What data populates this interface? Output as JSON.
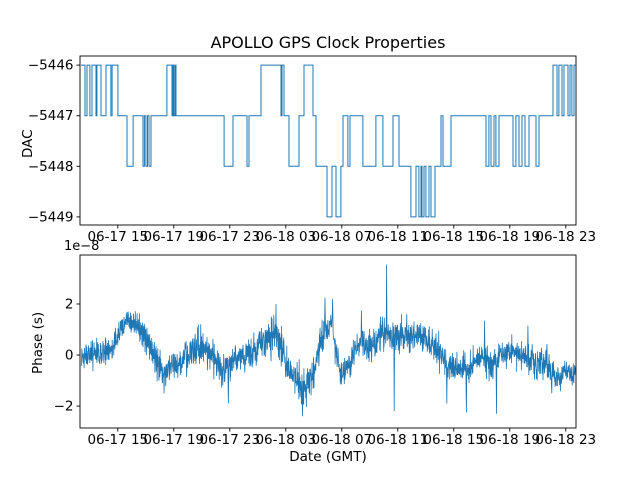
{
  "figure": {
    "title": "APOLLO GPS Clock Properties",
    "background_color": "#ffffff",
    "line_color": "#1f77b4",
    "axis_color": "#000000",
    "text_color": "#000000"
  },
  "chart_data": [
    {
      "type": "line",
      "name": "dac",
      "title": "APOLLO GPS Clock Properties",
      "ylabel": "DAC",
      "drawstyle": "steps-post",
      "line_color": "#1f77b4",
      "x_axis_note": "x values are hours; tick labels show month-day hour (GMT)",
      "xlim": [
        0.3,
        35.73
      ],
      "x_end": 35.7,
      "ylim": [
        -5449.16,
        -5445.82
      ],
      "xticks": [
        3,
        7,
        11,
        15,
        19,
        23,
        27,
        31,
        35
      ],
      "xtick_labels": [
        "06-17 15",
        "06-17 19",
        "06-17 23",
        "06-18 03",
        "06-18 07",
        "06-18 11",
        "06-18 15",
        "06-18 19",
        "06-18 23"
      ],
      "yticks": [
        -5446,
        -5447,
        -5448,
        -5449
      ],
      "ytick_labels": [
        "−5446",
        "−5447",
        "−5448",
        "−5449"
      ],
      "steps": [
        [
          0.37,
          -5446
        ],
        [
          0.66,
          -5447
        ],
        [
          0.8,
          -5446
        ],
        [
          1.01,
          -5447
        ],
        [
          1.16,
          -5446
        ],
        [
          1.44,
          -5447
        ],
        [
          1.51,
          -5446
        ],
        [
          1.8,
          -5447
        ],
        [
          2.16,
          -5446
        ],
        [
          2.51,
          -5447
        ],
        [
          2.59,
          -5446
        ],
        [
          3.01,
          -5447
        ],
        [
          3.66,
          -5448
        ],
        [
          4.09,
          -5447
        ],
        [
          4.8,
          -5448
        ],
        [
          4.9,
          -5447
        ],
        [
          5.01,
          -5448
        ],
        [
          5.12,
          -5447
        ],
        [
          5.23,
          -5448
        ],
        [
          5.37,
          -5447
        ],
        [
          6.51,
          -5446
        ],
        [
          6.87,
          -5447
        ],
        [
          6.94,
          -5446
        ],
        [
          7.01,
          -5447
        ],
        [
          7.09,
          -5446
        ],
        [
          7.16,
          -5447
        ],
        [
          10.59,
          -5448
        ],
        [
          11.23,
          -5447
        ],
        [
          12.23,
          -5448
        ],
        [
          12.37,
          -5447
        ],
        [
          13.23,
          -5446
        ],
        [
          14.66,
          -5447
        ],
        [
          14.73,
          -5446
        ],
        [
          14.87,
          -5447
        ],
        [
          15.23,
          -5448
        ],
        [
          15.94,
          -5447
        ],
        [
          16.3,
          -5446
        ],
        [
          16.94,
          -5447
        ],
        [
          17.16,
          -5448
        ],
        [
          17.94,
          -5449
        ],
        [
          18.3,
          -5448
        ],
        [
          18.59,
          -5449
        ],
        [
          18.94,
          -5448
        ],
        [
          19.09,
          -5447
        ],
        [
          19.44,
          -5448
        ],
        [
          19.59,
          -5447
        ],
        [
          20.51,
          -5448
        ],
        [
          21.44,
          -5447
        ],
        [
          21.94,
          -5448
        ],
        [
          22.66,
          -5447
        ],
        [
          23.09,
          -5448
        ],
        [
          23.94,
          -5449
        ],
        [
          24.3,
          -5448
        ],
        [
          24.51,
          -5449
        ],
        [
          24.66,
          -5448
        ],
        [
          24.73,
          -5449
        ],
        [
          24.87,
          -5448
        ],
        [
          25.01,
          -5449
        ],
        [
          25.23,
          -5448
        ],
        [
          25.37,
          -5449
        ],
        [
          25.66,
          -5448
        ],
        [
          26.09,
          -5447
        ],
        [
          26.23,
          -5448
        ],
        [
          26.8,
          -5447
        ],
        [
          29.3,
          -5448
        ],
        [
          29.51,
          -5447
        ],
        [
          29.66,
          -5448
        ],
        [
          29.87,
          -5447
        ],
        [
          30.01,
          -5448
        ],
        [
          30.23,
          -5447
        ],
        [
          31.23,
          -5448
        ],
        [
          31.44,
          -5447
        ],
        [
          31.66,
          -5448
        ],
        [
          31.87,
          -5447
        ],
        [
          32.09,
          -5448
        ],
        [
          32.37,
          -5447
        ],
        [
          32.87,
          -5448
        ],
        [
          33.09,
          -5447
        ],
        [
          34.09,
          -5446
        ],
        [
          34.37,
          -5447
        ],
        [
          34.51,
          -5446
        ],
        [
          34.73,
          -5447
        ],
        [
          34.87,
          -5446
        ],
        [
          35.16,
          -5447
        ],
        [
          35.3,
          -5446
        ],
        [
          35.44,
          -5447
        ],
        [
          35.59,
          -5446
        ]
      ]
    },
    {
      "type": "line",
      "name": "phase",
      "xlabel": "Date (GMT)",
      "ylabel": "Phase (s)",
      "y_offset_text": "1e−8",
      "y_scale": 1e-08,
      "line_color": "#1f77b4",
      "x_axis_note": "x values are hours; tick labels show month-day hour (GMT)",
      "xlim": [
        0.3,
        35.73
      ],
      "ylim": [
        -2.86,
        3.92
      ],
      "xticks": [
        3,
        7,
        11,
        15,
        19,
        23,
        27,
        31,
        35
      ],
      "xtick_labels": [
        "06-17 15",
        "06-17 19",
        "06-17 23",
        "06-18 03",
        "06-18 07",
        "06-18 11",
        "06-18 15",
        "06-18 19",
        "06-18 23"
      ],
      "yticks": [
        2,
        0,
        -2
      ],
      "ytick_labels": [
        "2",
        "0",
        "−2"
      ],
      "samples": 2200,
      "seed": 20230618,
      "noise_envelope": [
        [
          0.4,
          0.0,
          0.4
        ],
        [
          1.4,
          0.05,
          0.45
        ],
        [
          2.5,
          0.15,
          0.5
        ],
        [
          3.2,
          1.0,
          0.45
        ],
        [
          3.8,
          1.4,
          0.4
        ],
        [
          4.5,
          1.0,
          0.4
        ],
        [
          5.4,
          0.3,
          0.5
        ],
        [
          6.2,
          -0.8,
          0.5
        ],
        [
          6.9,
          -0.35,
          0.45
        ],
        [
          7.9,
          -0.1,
          0.45
        ],
        [
          8.7,
          0.4,
          0.5
        ],
        [
          9.7,
          0.1,
          0.5
        ],
        [
          10.5,
          -0.6,
          0.5
        ],
        [
          11.4,
          -0.15,
          0.45
        ],
        [
          12.5,
          0.1,
          0.5
        ],
        [
          13.4,
          0.55,
          0.55
        ],
        [
          14.3,
          0.8,
          0.6
        ],
        [
          15.2,
          -0.5,
          0.55
        ],
        [
          16.1,
          -1.3,
          0.55
        ],
        [
          16.9,
          -0.9,
          0.6
        ],
        [
          17.7,
          0.9,
          0.6
        ],
        [
          18.3,
          1.2,
          0.55
        ],
        [
          18.9,
          -0.8,
          0.4
        ],
        [
          19.6,
          -0.3,
          0.45
        ],
        [
          20.3,
          0.5,
          0.5
        ],
        [
          20.9,
          0.3,
          0.5
        ],
        [
          21.6,
          0.6,
          0.5
        ],
        [
          22.1,
          0.9,
          0.55
        ],
        [
          22.8,
          0.75,
          0.5
        ],
        [
          23.6,
          0.8,
          0.5
        ],
        [
          24.4,
          0.75,
          0.5
        ],
        [
          25.1,
          0.5,
          0.5
        ],
        [
          25.9,
          0.2,
          0.5
        ],
        [
          26.6,
          -0.3,
          0.5
        ],
        [
          27.3,
          -0.55,
          0.45
        ],
        [
          28.1,
          -0.5,
          0.45
        ],
        [
          28.9,
          -0.15,
          0.5
        ],
        [
          29.7,
          -0.35,
          0.5
        ],
        [
          30.4,
          0.05,
          0.45
        ],
        [
          31.2,
          0.1,
          0.45
        ],
        [
          32.0,
          -0.1,
          0.45
        ],
        [
          32.8,
          -0.2,
          0.5
        ],
        [
          33.6,
          -0.35,
          0.5
        ],
        [
          34.4,
          -0.9,
          0.4
        ],
        [
          35.1,
          -0.65,
          0.4
        ],
        [
          35.7,
          -0.8,
          0.35
        ]
      ],
      "spikes": [
        [
          6.3,
          -1.5
        ],
        [
          10.9,
          -1.9
        ],
        [
          14.3,
          2.0
        ],
        [
          16.2,
          -2.4
        ],
        [
          17.8,
          2.25
        ],
        [
          18.35,
          2.2
        ],
        [
          20.4,
          1.75
        ],
        [
          22.2,
          3.55
        ],
        [
          22.75,
          -2.2
        ],
        [
          26.5,
          -1.9
        ],
        [
          27.9,
          -2.25
        ],
        [
          29.2,
          1.35
        ],
        [
          30.05,
          -2.3
        ],
        [
          32.3,
          1.15
        ],
        [
          34.0,
          -1.5
        ],
        [
          35.68,
          -2.2
        ]
      ]
    }
  ]
}
